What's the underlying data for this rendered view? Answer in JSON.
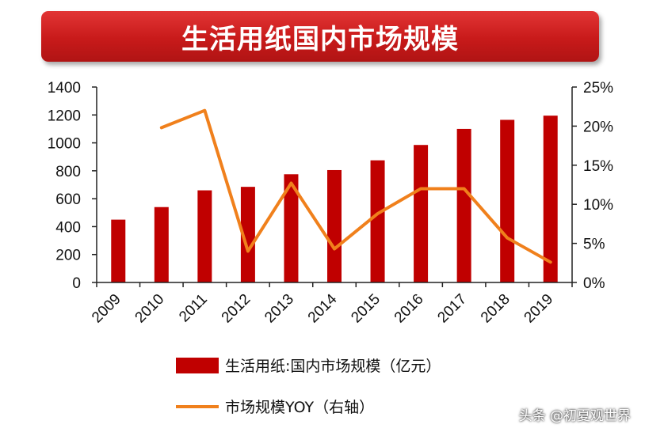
{
  "title": "生活用纸国内市场规模",
  "chart_data": {
    "type": "bar",
    "categories": [
      "2009",
      "2010",
      "2011",
      "2012",
      "2013",
      "2014",
      "2015",
      "2016",
      "2017",
      "2018",
      "2019"
    ],
    "series": [
      {
        "name": "生活用纸:国内市场规模（亿元）",
        "type": "bar",
        "axis": "left",
        "color": "#c00000",
        "values": [
          450,
          540,
          660,
          685,
          775,
          805,
          875,
          985,
          1100,
          1165,
          1195
        ]
      },
      {
        "name": "市场规模YOY（右轴）",
        "type": "line",
        "axis": "right",
        "color": "#f0801c",
        "values": [
          null,
          19.8,
          22.0,
          4.0,
          12.7,
          4.3,
          8.8,
          12.0,
          12.0,
          5.7,
          2.6
        ]
      }
    ],
    "y_left": {
      "range": [
        0,
        1400
      ],
      "ticks": [
        "0",
        "200",
        "400",
        "600",
        "800",
        "1000",
        "1200",
        "1400"
      ]
    },
    "y_right": {
      "range": [
        0,
        25
      ],
      "ticks": [
        "0%",
        "5%",
        "10%",
        "15%",
        "20%",
        "25%"
      ]
    },
    "grid": false,
    "legend_position": "bottom"
  },
  "watermark": "头条 @初夏观世界"
}
